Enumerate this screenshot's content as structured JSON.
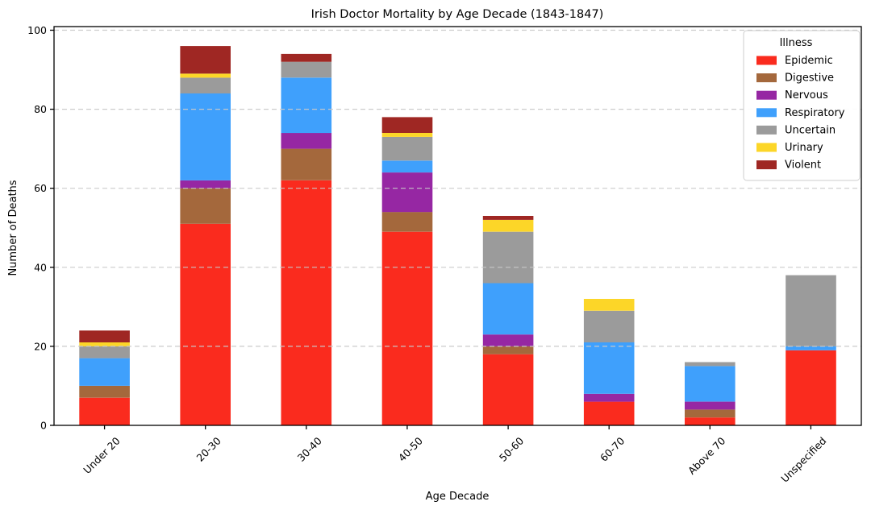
{
  "chart_data": {
    "type": "bar",
    "stacked": true,
    "title": "Irish Doctor Mortality by Age Decade (1843-1847)",
    "xlabel": "Age Decade",
    "ylabel": "Number of Deaths",
    "ylim": [
      0,
      100
    ],
    "yticks": [
      0,
      20,
      40,
      60,
      80,
      100
    ],
    "grid": "horizontal-dashed-over-bars",
    "legend_title": "Illness",
    "legend_position": "upper right",
    "categories": [
      "Under 20",
      "20-30",
      "30-40",
      "40-50",
      "50-60",
      "60-70",
      "Above 70",
      "Unspecified"
    ],
    "series": [
      {
        "name": "Epidemic",
        "color": "#fa2b1e",
        "values": [
          7,
          51,
          62,
          49,
          18,
          6,
          2,
          19
        ]
      },
      {
        "name": "Digestive",
        "color": "#a4683c",
        "values": [
          3,
          9,
          8,
          5,
          2,
          0,
          2,
          0
        ]
      },
      {
        "name": "Nervous",
        "color": "#9627a3",
        "values": [
          0,
          2,
          4,
          10,
          3,
          2,
          2,
          0
        ]
      },
      {
        "name": "Respiratory",
        "color": "#3fa0fc",
        "values": [
          7,
          22,
          14,
          3,
          13,
          13,
          9,
          1
        ]
      },
      {
        "name": "Uncertain",
        "color": "#9b9b9b",
        "values": [
          3,
          4,
          4,
          6,
          13,
          8,
          1,
          18
        ]
      },
      {
        "name": "Urinary",
        "color": "#fcd628",
        "values": [
          1,
          1,
          0,
          1,
          3,
          3,
          0,
          0
        ]
      },
      {
        "name": "Violent",
        "color": "#9f2723",
        "values": [
          3,
          7,
          2,
          4,
          1,
          0,
          0,
          0
        ]
      }
    ],
    "totals": [
      24,
      96,
      94,
      78,
      53,
      32,
      16,
      38
    ],
    "colors": {
      "grid": "#c9c9c9",
      "spine": "#000000",
      "legend_border": "#cccccc",
      "background": "#ffffff"
    }
  }
}
